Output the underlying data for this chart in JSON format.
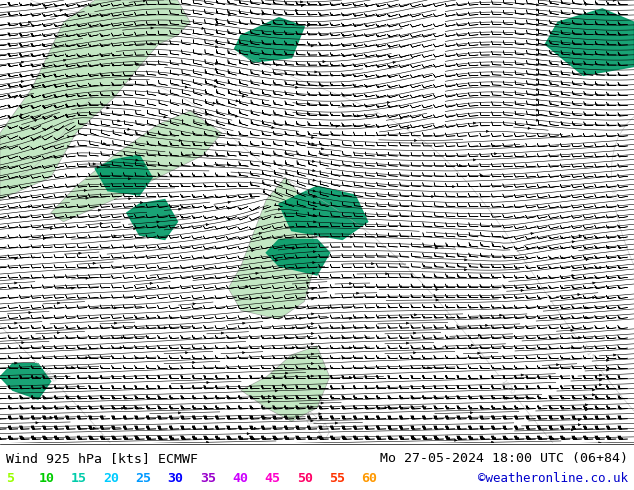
{
  "title_left": "Wind 925 hPa [kts] ECMWF",
  "title_right": "Mo 27-05-2024 18:00 UTC (06+84)",
  "credit": "©weatheronline.co.uk",
  "legend_values": [
    5,
    10,
    15,
    20,
    25,
    30,
    35,
    40,
    45,
    50,
    55,
    60
  ],
  "legend_colors": [
    "#99ff00",
    "#00cc00",
    "#00ccaa",
    "#00ccff",
    "#0099ff",
    "#0000ff",
    "#9900cc",
    "#cc00ff",
    "#ff00cc",
    "#ff0066",
    "#ff3300",
    "#ff9900"
  ],
  "bg_color": "#ffffff",
  "map_bg": "#ffffff",
  "land_color": "#aaddaa",
  "teal_color": "#009966",
  "barb_color": "#000000",
  "contour_color": "#aaaaaa",
  "title_fontsize": 9.5,
  "legend_fontsize": 9.5,
  "credit_fontsize": 9,
  "fig_width": 6.34,
  "fig_height": 4.9,
  "dpi": 100,
  "land_regions": [
    {
      "x": [
        0.0,
        0.08,
        0.12,
        0.18,
        0.22,
        0.25,
        0.28,
        0.3,
        0.28,
        0.25,
        0.2,
        0.15,
        0.1,
        0.05,
        0.0
      ],
      "y": [
        0.55,
        0.6,
        0.7,
        0.78,
        0.85,
        0.9,
        0.92,
        0.95,
        1.0,
        1.0,
        1.0,
        1.0,
        0.95,
        0.8,
        0.7
      ]
    },
    {
      "x": [
        0.1,
        0.18,
        0.25,
        0.32,
        0.35,
        0.3,
        0.25,
        0.18,
        0.12,
        0.08
      ],
      "y": [
        0.5,
        0.55,
        0.6,
        0.65,
        0.7,
        0.75,
        0.72,
        0.65,
        0.58,
        0.52
      ]
    },
    {
      "x": [
        0.38,
        0.44,
        0.48,
        0.5,
        0.48,
        0.45,
        0.42,
        0.38,
        0.36
      ],
      "y": [
        0.3,
        0.28,
        0.32,
        0.42,
        0.55,
        0.6,
        0.55,
        0.4,
        0.35
      ]
    },
    {
      "x": [
        0.38,
        0.42,
        0.46,
        0.5,
        0.52,
        0.5,
        0.46,
        0.42,
        0.38
      ],
      "y": [
        0.12,
        0.08,
        0.05,
        0.08,
        0.15,
        0.22,
        0.2,
        0.15,
        0.12
      ]
    }
  ],
  "teal_regions": [
    {
      "x": [
        0.38,
        0.44,
        0.48,
        0.46,
        0.4,
        0.37
      ],
      "y": [
        0.92,
        0.96,
        0.94,
        0.87,
        0.86,
        0.89
      ]
    },
    {
      "x": [
        0.88,
        0.95,
        1.0,
        1.0,
        0.92,
        0.86
      ],
      "y": [
        0.95,
        0.98,
        0.95,
        0.85,
        0.83,
        0.9
      ]
    },
    {
      "x": [
        0.18,
        0.22,
        0.24,
        0.22,
        0.17,
        0.15
      ],
      "y": [
        0.64,
        0.65,
        0.6,
        0.56,
        0.57,
        0.62
      ]
    },
    {
      "x": [
        0.22,
        0.26,
        0.28,
        0.26,
        0.22,
        0.2
      ],
      "y": [
        0.54,
        0.55,
        0.5,
        0.46,
        0.47,
        0.52
      ]
    },
    {
      "x": [
        0.46,
        0.54,
        0.58,
        0.56,
        0.5,
        0.44
      ],
      "y": [
        0.48,
        0.46,
        0.5,
        0.56,
        0.58,
        0.54
      ]
    },
    {
      "x": [
        0.44,
        0.5,
        0.52,
        0.5,
        0.44,
        0.42
      ],
      "y": [
        0.4,
        0.38,
        0.43,
        0.46,
        0.46,
        0.43
      ]
    },
    {
      "x": [
        0.02,
        0.06,
        0.08,
        0.06,
        0.02,
        0.0
      ],
      "y": [
        0.12,
        0.1,
        0.14,
        0.18,
        0.18,
        0.15
      ]
    }
  ]
}
